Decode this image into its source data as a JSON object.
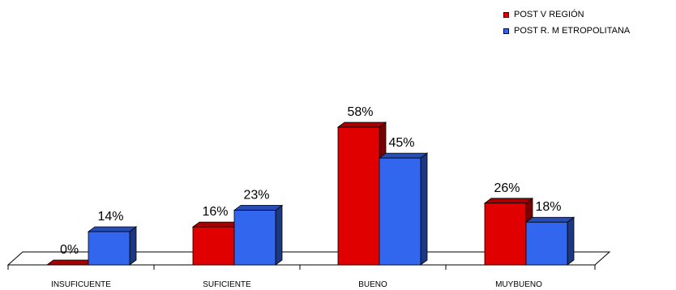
{
  "chart_data": {
    "type": "bar",
    "categories": [
      "INSUFICUENTE",
      "SUFICIENTE",
      "BUENO",
      "MUYBUENO"
    ],
    "series": [
      {
        "name": "POST V REGIÓN",
        "values": [
          0,
          16,
          58,
          26
        ],
        "labels": [
          "0%",
          "16%",
          "58%",
          "26%"
        ],
        "color": "#e00000"
      },
      {
        "name": "POST R. M ETROPOLITANA",
        "values": [
          14,
          23,
          45,
          18
        ],
        "labels": [
          "14%",
          "23%",
          "45%",
          "18%"
        ],
        "color": "#3366ee"
      }
    ],
    "ylim": [
      0,
      60
    ],
    "unit": "%",
    "grid": false,
    "legend": "top-right",
    "title": "",
    "xlabel": "",
    "ylabel": ""
  }
}
